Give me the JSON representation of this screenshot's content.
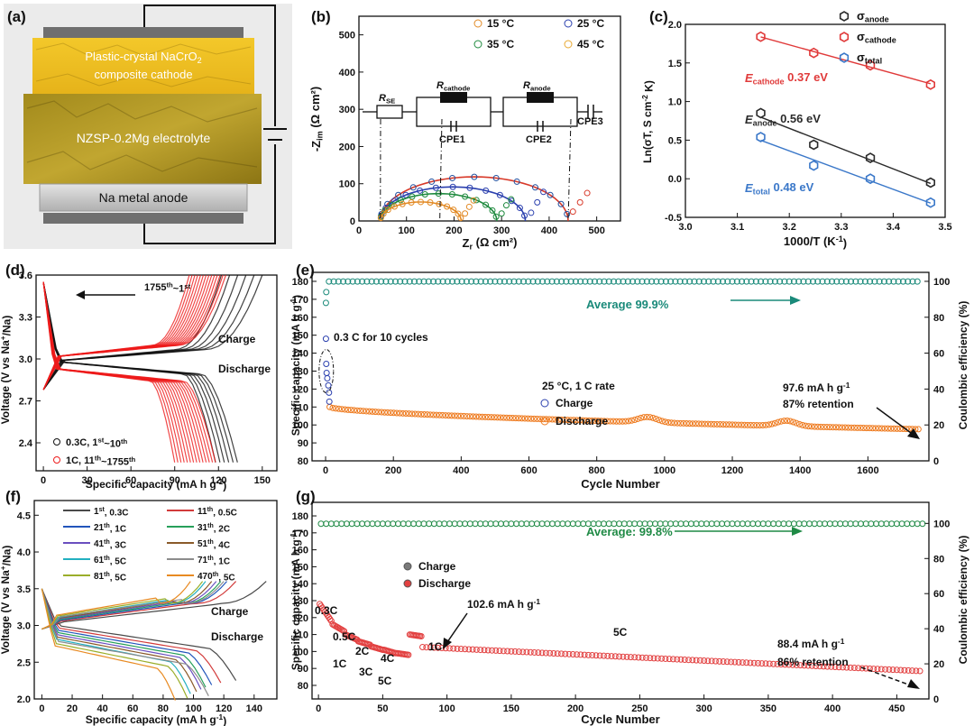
{
  "panels": {
    "a": {
      "label": "(a)",
      "cathode_text": [
        "Plastic-crystal NaCrO",
        "composite cathode"
      ],
      "cathode_sub": "2",
      "electrolyte_text": "NZSP-0.2Mg electrolyte",
      "anode_text": "Na metal anode"
    },
    "b": {
      "label": "(b)",
      "circuit": {
        "rse": "R",
        "rse_sub": "SE",
        "rc": "R",
        "rc_sub": "cathode",
        "ra": "R",
        "ra_sub": "anode",
        "cpe1": "CPE1",
        "cpe2": "CPE2",
        "cpe3": "CPE3"
      }
    },
    "c": {
      "label": "(c)"
    },
    "d": {
      "label": "(d)",
      "arrow_text": "1755",
      "arrow_sup1": "th",
      "arrow_mid": "~1",
      "arrow_sup2": "st",
      "charge": "Charge",
      "discharge": "Discharge"
    },
    "e": {
      "label": "(e)",
      "avg": "Average 99.9%",
      "note1": "0.3 C for 10 cycles",
      "note2": "25 °C, 1 C rate",
      "cap": "97.6 mA h g",
      "cap_sup": "-1",
      "ret": "87% retention"
    },
    "f": {
      "label": "(f)",
      "charge": "Charge",
      "discharge": "Discharge"
    },
    "g": {
      "label": "(g)",
      "avg": "Average: 99.8%",
      "cap1": "102.6 mA h g",
      "cap1_sup": "-1",
      "cap2": "88.4 mA h g",
      "cap2_sup": "-1",
      "ret": "86% retention",
      "rates": [
        {
          "t": "0.3C"
        },
        {
          "t": "0.5C"
        },
        {
          "t": "2C"
        },
        {
          "t": "1C"
        },
        {
          "t": "4C"
        },
        {
          "t": "3C"
        },
        {
          "t": "5C"
        },
        {
          "t": "1C"
        },
        {
          "t": "5C"
        }
      ]
    }
  },
  "chart_data": [
    {
      "id": "b",
      "type": "scatter",
      "xlabel": "Z",
      "xlabel_sub": "r",
      "xlabel_unit": " (Ω cm²)",
      "ylabel": "-Z",
      "ylabel_sub": "im",
      "ylabel_unit": " (Ω cm²)",
      "xlim": [
        0,
        550
      ],
      "ylim": [
        0,
        550
      ],
      "xticks": [
        0,
        100,
        200,
        300,
        400,
        500
      ],
      "yticks": [
        0,
        100,
        200,
        300,
        400,
        500
      ],
      "series": [
        {
          "name": "15 °C",
          "color": "#1f4e9e",
          "r0": 45,
          "r1": 440,
          "tail": [
            [
              450,
              25
            ],
            [
              465,
              50
            ],
            [
              480,
              75
            ]
          ]
        },
        {
          "name": "25 °C",
          "color": "#2a3fae",
          "r0": 45,
          "r1": 350,
          "tail": [
            [
              362,
              22
            ],
            [
              375,
              50
            ],
            [
              388,
              78
            ]
          ]
        },
        {
          "name": "35 °C",
          "color": "#1e8a3e",
          "r0": 45,
          "r1": 290,
          "tail": [
            [
              300,
              20
            ],
            [
              310,
              42
            ],
            [
              320,
              58
            ]
          ]
        },
        {
          "name": "45 °C",
          "color": "#e28a25",
          "r0": 45,
          "r1": 215,
          "tail": [
            [
              223,
              20
            ],
            [
              232,
              38
            ],
            [
              241,
              55
            ]
          ]
        }
      ],
      "arc_colors": [
        "#d83a2a",
        "#2a3fae",
        "#1e8a3e",
        "#e28a25"
      ]
    },
    {
      "id": "c",
      "type": "scatter",
      "xlabel": "1000/T (K",
      "xlabel_sup": "-1",
      "xlabel_end": ")",
      "ylabel": "Ln(σT, S cm",
      "ylabel_sup": "-2",
      "ylabel_end": " K)",
      "xlim": [
        3.0,
        3.5
      ],
      "ylim": [
        -0.5,
        2.0
      ],
      "xticks": [
        3.0,
        3.1,
        3.2,
        3.3,
        3.4,
        3.5
      ],
      "yticks": [
        -0.5,
        0.0,
        0.5,
        1.0,
        1.5,
        2.0
      ],
      "series": [
        {
          "name": "σ",
          "sub": "anode",
          "color": "#2b2b2b",
          "x": [
            3.145,
            3.247,
            3.356,
            3.472
          ],
          "y": [
            0.85,
            0.44,
            0.27,
            -0.05
          ],
          "ea_label": "E",
          "ea_sub": "anode",
          "ea_val": " 0.56 eV"
        },
        {
          "name": "σ",
          "sub": "cathode",
          "color": "#e03a3a",
          "x": [
            3.145,
            3.247,
            3.356,
            3.472
          ],
          "y": [
            1.84,
            1.63,
            1.47,
            1.22
          ],
          "ea_label": "E",
          "ea_sub": "cathode",
          "ea_val": " 0.37 eV"
        },
        {
          "name": "σ",
          "sub": "total",
          "color": "#3b78c9",
          "x": [
            3.145,
            3.247,
            3.356,
            3.472
          ],
          "y": [
            0.54,
            0.17,
            0.0,
            -0.31
          ],
          "ea_label": "E",
          "ea_sub": "total",
          "ea_val": " 0.48 eV"
        }
      ]
    },
    {
      "id": "d",
      "type": "scatter",
      "xlabel": "Specific capacity (mA h g",
      "xlabel_sup": "-1",
      "xlabel_end": ")",
      "ylabel": "Voltage (V vs Na",
      "ylabel_sup": "+",
      "ylabel_end": "/Na)",
      "xlim": [
        -5,
        160
      ],
      "ylim": [
        2.2,
        3.6
      ],
      "xticks": [
        0,
        30,
        60,
        90,
        120,
        150
      ],
      "yticks": [
        2.4,
        2.7,
        3.0,
        3.3,
        3.6
      ],
      "series": [
        {
          "name": "0.3C, 1",
          "sup1": "st",
          "name2": "~10",
          "sup2": "th",
          "color": "#111111",
          "charge_end": [
            122,
            150
          ],
          "discharge_end": [
            118,
            133
          ],
          "plateau_c": 2.99,
          "plateau_d": 2.93
        },
        {
          "name": "1C, 11",
          "sup1": "th",
          "name2": "~1755",
          "sup2": "th",
          "color": "#ee1c1c",
          "charge_end": [
            100,
            125
          ],
          "discharge_end": [
            90,
            118
          ],
          "plateau_c": 3.02,
          "plateau_d": 2.88
        }
      ]
    },
    {
      "id": "e",
      "type": "scatter",
      "xlabel": "Cycle Number",
      "ylabel": "Specific capacity (mA h g",
      "ylabel_sup": "-1",
      "ylabel_end": ")",
      "y2label": "Coulombic efficiency (%)",
      "xlim": [
        -40,
        1780
      ],
      "ylim": [
        80,
        185
      ],
      "y2lim": [
        0,
        105
      ],
      "xticks": [
        0,
        200,
        400,
        600,
        800,
        1000,
        1200,
        1400,
        1600
      ],
      "yticks": [
        80,
        90,
        100,
        110,
        120,
        130,
        140,
        150,
        160,
        170,
        180
      ],
      "y2ticks": [
        0,
        20,
        40,
        60,
        80,
        100
      ],
      "series": [
        {
          "name": "Charge",
          "color": "#2a3fae",
          "first": [
            [
              1,
              148
            ],
            [
              2,
              134
            ],
            [
              3,
              129
            ],
            [
              5,
              126
            ],
            [
              8,
              122
            ],
            [
              10,
              118
            ],
            [
              11,
              113
            ]
          ]
        },
        {
          "name": "Discharge",
          "color": "#ee7a1e",
          "start": 110,
          "end": 97.6,
          "bumps": [
            [
              950,
              103
            ],
            [
              1360,
              103
            ]
          ]
        },
        {
          "name": "CE",
          "color": "#1a8a7a",
          "value": 99.9,
          "early": [
            [
              1,
              88
            ],
            [
              2,
              94
            ]
          ]
        }
      ]
    },
    {
      "id": "f",
      "type": "line",
      "xlabel": "Specific capacity (mA h g",
      "xlabel_sup": "-1",
      "xlabel_end": ")",
      "ylabel": "Voltage (V vs Na",
      "ylabel_sup": "+",
      "ylabel_end": "/Na)",
      "xlim": [
        -5,
        155
      ],
      "ylim": [
        2.0,
        4.7
      ],
      "xticks": [
        0,
        20,
        40,
        60,
        80,
        100,
        120,
        140
      ],
      "yticks": [
        2.0,
        2.5,
        3.0,
        3.5,
        4.0,
        4.5
      ],
      "series": [
        {
          "name": "1",
          "sup": "st",
          "rate": ", 0.3C",
          "color": "#4a4a4a",
          "cap": 128
        },
        {
          "name": "11",
          "sup": "th",
          "rate": ", 0.5C",
          "color": "#d23b3b",
          "cap": 118
        },
        {
          "name": "21",
          "sup": "th",
          "rate": ", 1C",
          "color": "#2255bb",
          "cap": 112
        },
        {
          "name": "31",
          "sup": "th",
          "rate": ", 2C",
          "color": "#27a05a",
          "cap": 108
        },
        {
          "name": "41",
          "sup": "th",
          "rate": ", 3C",
          "color": "#6a4fbf",
          "cap": 105
        },
        {
          "name": "51",
          "sup": "th",
          "rate": ", 4C",
          "color": "#8a5a2a",
          "cap": 102
        },
        {
          "name": "61",
          "sup": "th",
          "rate": ", 5C",
          "color": "#22b0c0",
          "cap": 98
        },
        {
          "name": "71",
          "sup": "th",
          "rate": ", 1C",
          "color": "#8c8c8c",
          "cap": 110
        },
        {
          "name": "81",
          "sup": "th",
          "rate": ", 5C",
          "color": "#9aae2a",
          "cap": 96
        },
        {
          "name": "470",
          "sup": "th",
          "rate": ", 5C",
          "color": "#e88a22",
          "cap": 88
        }
      ]
    },
    {
      "id": "g",
      "type": "scatter",
      "xlabel": "Cycle Number",
      "ylabel": "Specific capacity (mA h g",
      "ylabel_sup": "-1",
      "ylabel_end": ")",
      "y2label": "Coulombic efficiency (%)",
      "xlim": [
        -5,
        475
      ],
      "ylim": [
        72,
        188
      ],
      "y2lim": [
        0,
        112
      ],
      "xticks": [
        0,
        50,
        100,
        150,
        200,
        250,
        300,
        350,
        400,
        450
      ],
      "yticks": [
        80,
        90,
        100,
        110,
        120,
        130,
        140,
        150,
        160,
        170,
        180
      ],
      "y2ticks": [
        0,
        20,
        40,
        60,
        80,
        100
      ],
      "series": [
        {
          "name": "Charge",
          "color": "#7a7a7a"
        },
        {
          "name": "Discharge",
          "color": "#e24040",
          "segments": [
            [
              1,
              10,
              128,
              118
            ],
            [
              11,
              20,
              116,
              112
            ],
            [
              21,
              30,
              110,
              107
            ],
            [
              31,
              40,
              106,
              104
            ],
            [
              41,
              50,
              103,
              101
            ],
            [
              51,
              60,
              101,
              99
            ],
            [
              61,
              70,
              99,
              98
            ],
            [
              71,
              80,
              110,
              109
            ],
            [
              81,
              470,
              102.6,
              88.4
            ]
          ]
        },
        {
          "name": "CE",
          "color": "#1f8a45",
          "value": 99.8
        }
      ]
    }
  ]
}
